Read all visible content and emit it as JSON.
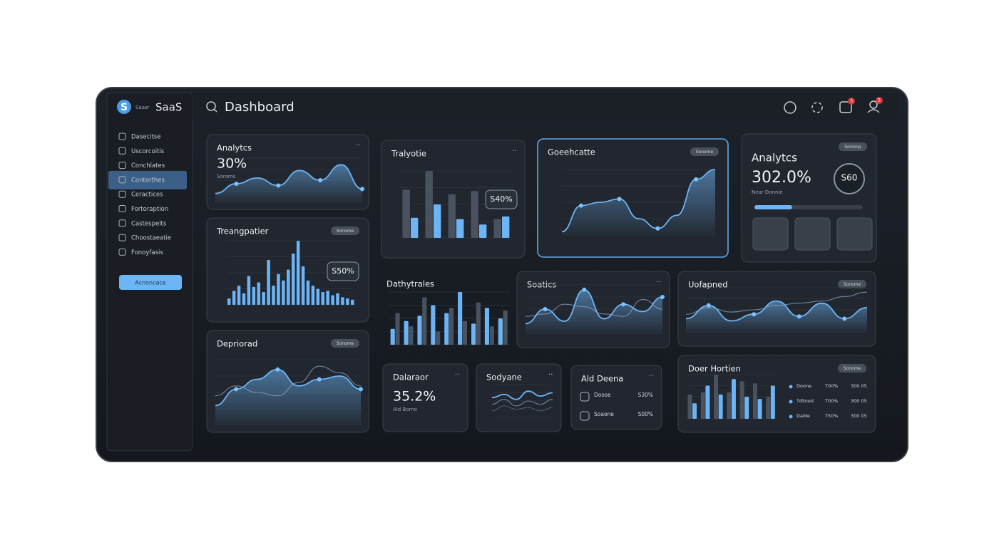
{
  "header": {
    "brand_small": "Saasr",
    "brand": "SaaS",
    "title": "Dashboard",
    "notifications": [
      "3",
      "5"
    ]
  },
  "sidebar": {
    "items": [
      "Dasecitse",
      "Uscorcoitis",
      "Conchlates",
      "Contorthes",
      "Ceractices",
      "Fortoraption",
      "Castespeits",
      "Choostaeatie",
      "Fonoyfasis"
    ],
    "active": 3,
    "button": "Acnoncace"
  },
  "cards": [
    {
      "title": "Analytcs",
      "value": "30%",
      "note": "Soroms",
      "chart": {
        "type": "area",
        "ylim": [
          0,
          100
        ],
        "series": [
          {
            "color": "#6cb4f5",
            "values": [
              20,
              42,
              55,
              38,
              72,
              50,
              85,
              30
            ]
          }
        ]
      }
    },
    {
      "title": "Treangpatier",
      "badge": "Sonome",
      "callout": "S50%",
      "chart": {
        "type": "bar",
        "ylim": [
          0,
          100
        ],
        "series": [
          {
            "color": "#6cb4f5",
            "values": [
              10,
              22,
              30,
              18,
              45,
              28,
              35,
              20,
              70,
              30,
              48,
              38,
              55,
              80,
              100,
              60,
              38,
              30,
              25,
              20,
              22,
              15,
              18,
              12,
              10,
              8
            ]
          }
        ]
      }
    },
    {
      "title": "Depriorad",
      "badge": "Sonome",
      "chart": {
        "type": "area",
        "ylim": [
          0,
          100
        ],
        "series": [
          {
            "color": "#6cb4f5",
            "values": [
              30,
              55,
              70,
              85,
              60,
              70,
              75,
              55
            ]
          },
          {
            "color": "#8aa6c4",
            "values": [
              45,
              60,
              50,
              45,
              65,
              90,
              80,
              60
            ]
          }
        ]
      }
    },
    {
      "title": "Tralyotie",
      "callout": "S40%",
      "chart": {
        "type": "bar",
        "ylim": [
          0,
          100
        ],
        "series": [
          {
            "color": "#4a5260",
            "values": [
              72,
              100,
              65,
              70,
              28
            ]
          },
          {
            "color": "#6cb4f5",
            "values": [
              30,
              50,
              28,
              20,
              32
            ]
          }
        ]
      }
    },
    {
      "title": "Dathytrales",
      "chart": {
        "type": "bar",
        "ylim": [
          0,
          100
        ],
        "series": [
          {
            "color": "#6cb4f5",
            "values": [
              30,
              45,
              55,
              75,
              60,
              100,
              40,
              70,
              50
            ]
          },
          {
            "color": "#4a5260",
            "values": [
              60,
              35,
              90,
              25,
              70,
              45,
              80,
              35,
              65
            ]
          }
        ]
      }
    },
    {
      "title": "Goeehcatte",
      "badge": "Sonome",
      "chart": {
        "type": "area",
        "ylim": [
          0,
          100
        ],
        "series": [
          {
            "color": "#6cb4f5",
            "values": [
              5,
              45,
              50,
              55,
              25,
              10,
              30,
              85,
              100
            ]
          }
        ]
      }
    },
    {
      "title": "Analytcs",
      "value": "302.0%",
      "note": "Near Donnie",
      "badge": "Sorrenp",
      "ring": "S60"
    },
    {
      "title": "Soatics",
      "chart": {
        "type": "area",
        "ylim": [
          0,
          100
        ],
        "series": [
          {
            "color": "#6cb4f5",
            "values": [
              20,
              50,
              25,
              90,
              30,
              60,
              45,
              75
            ]
          },
          {
            "color": "#8aa6c4",
            "values": [
              35,
              40,
              60,
              55,
              40,
              35,
              70,
              50
            ]
          }
        ]
      }
    },
    {
      "title": "Uofapned",
      "badge": "Sonome",
      "chart": {
        "type": "area",
        "ylim": [
          0,
          100
        ],
        "series": [
          {
            "color": "#6cb4f5",
            "values": [
              30,
              60,
              25,
              40,
              70,
              35,
              65,
              30,
              55
            ]
          },
          {
            "color": "#8aa6c4",
            "values": [
              40,
              55,
              45,
              50,
              60,
              65,
              70,
              80,
              90
            ]
          }
        ]
      }
    },
    {
      "title": "Dalaraor",
      "value": "35.2%",
      "note": "Ald Borno"
    },
    {
      "title": "Sodyane",
      "chart": {
        "type": "line",
        "ylim": [
          0,
          100
        ],
        "series": [
          {
            "color": "#6cb4f5",
            "values": [
              60,
              70,
              55,
              80,
              65,
              75
            ]
          },
          {
            "color": "#8aa6c4",
            "values": [
              40,
              55,
              35,
              50,
              40,
              55
            ]
          },
          {
            "color": "#5b6b80",
            "values": [
              20,
              35,
              25,
              30,
              20,
              30
            ]
          }
        ]
      }
    },
    {
      "title": "Ald Deena",
      "rows": [
        {
          "label": "Doose",
          "value": "S30%"
        },
        {
          "label": "Soaone",
          "value": "S00%"
        }
      ]
    },
    {
      "title": "Doer Hortien",
      "badge": "Sonome",
      "chart": {
        "type": "bar",
        "ylim": [
          0,
          100
        ],
        "series": [
          {
            "color": "#4a5260",
            "values": [
              55,
              60,
              100,
              60,
              85,
              80,
              50
            ]
          },
          {
            "color": "#6cb4f5",
            "values": [
              35,
              75,
              55,
              90,
              50,
              45,
              75
            ]
          }
        ]
      },
      "rows": [
        {
          "label": "Doone",
          "value": "T00%",
          "extra": "300 05"
        },
        {
          "label": "Tdlined",
          "value": "T00%",
          "extra": "300 05"
        },
        {
          "label": "Dalde",
          "value": "T50%",
          "extra": "300 05"
        }
      ]
    }
  ]
}
